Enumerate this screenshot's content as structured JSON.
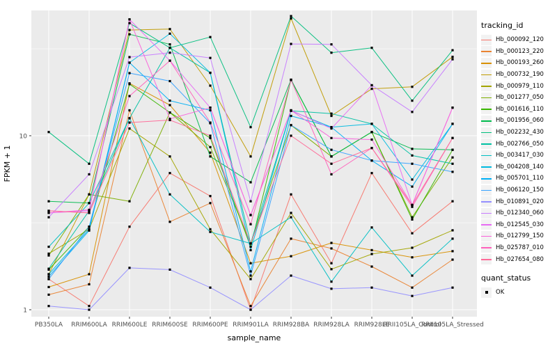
{
  "chart_data": {
    "type": "line",
    "title": "",
    "xlabel": "sample_name",
    "ylabel": "FPKM + 1",
    "yscale": "log10",
    "ylim": [
      0.95,
      52
    ],
    "grid": true,
    "panel_bg": "#EBEBEB",
    "grid_color": "#FFFFFF",
    "point_color": "#000000",
    "ytick_labels": [
      "10",
      "1"
    ],
    "ytick_values": [
      10,
      1
    ],
    "yminor_values": [
      31.6,
      3.16
    ],
    "legend_position": "right",
    "categories": [
      "PB350LA",
      "RRIM600LA",
      "RRIM600LE",
      "RRIM600SE",
      "RRIM600PE",
      "RRIM901LA",
      "RRIM928BA",
      "RRIM928LA",
      "RRIM928LE",
      "RRII105LA_Control",
      "RRII105LA_Stressed"
    ],
    "series": [
      {
        "name": "Hb_000092_120",
        "color": "#F8766D",
        "values": [
          1.5,
          1.05,
          3.0,
          6.1,
          4.5,
          1.0,
          4.6,
          1.85,
          6.1,
          2.75,
          4.2
        ]
      },
      {
        "name": "Hb_000123_220",
        "color": "#EA8331",
        "values": [
          1.22,
          1.4,
          14.0,
          3.2,
          4.1,
          1.05,
          2.56,
          2.25,
          1.77,
          1.34,
          1.94
        ]
      },
      {
        "name": "Hb_000193_260",
        "color": "#D89000",
        "values": [
          1.35,
          1.6,
          20.0,
          15.0,
          8.0,
          1.85,
          2.03,
          2.42,
          2.2,
          2.0,
          2.17
        ]
      },
      {
        "name": "Hb_000732_190",
        "color": "#C09B00",
        "values": [
          1.6,
          4.6,
          40.5,
          41.0,
          19.4,
          7.6,
          47.2,
          13.0,
          18.6,
          19.1,
          28.4
        ]
      },
      {
        "name": "Hb_000979_110",
        "color": "#A3A500",
        "values": [
          2.1,
          2.9,
          11.0,
          7.6,
          2.9,
          1.5,
          3.6,
          1.71,
          2.09,
          2.27,
          2.86
        ]
      },
      {
        "name": "Hb_001277_050",
        "color": "#7CAE00",
        "values": [
          2.05,
          4.6,
          4.2,
          13.6,
          8.6,
          2.4,
          11.5,
          7.6,
          10.5,
          3.4,
          7.5
        ]
      },
      {
        "name": "Hb_001616_110",
        "color": "#39B600",
        "values": [
          1.7,
          3.0,
          19.8,
          13.6,
          9.7,
          2.3,
          20.9,
          7.6,
          10.5,
          3.3,
          8.3
        ]
      },
      {
        "name": "Hb_001956_060",
        "color": "#00BB4E",
        "values": [
          4.2,
          4.1,
          38.3,
          33.5,
          7.6,
          5.4,
          21.0,
          7.6,
          10.5,
          8.4,
          8.3
        ]
      },
      {
        "name": "Hb_002232_430",
        "color": "#00BF7D",
        "values": [
          10.5,
          6.9,
          44.4,
          32.0,
          36.9,
          11.2,
          48.7,
          30.0,
          32.0,
          15.9,
          31.0
        ]
      },
      {
        "name": "Hb_002766_050",
        "color": "#00C1A3",
        "values": [
          1.72,
          3.7,
          12.6,
          32.0,
          23.0,
          2.4,
          13.9,
          13.4,
          11.7,
          7.7,
          6.9
        ]
      },
      {
        "name": "Hb_003417_030",
        "color": "#00BFC4",
        "values": [
          2.3,
          4.1,
          12.6,
          4.6,
          2.8,
          2.4,
          3.4,
          1.45,
          2.97,
          1.57,
          2.56
        ]
      },
      {
        "name": "Hb_004208_140",
        "color": "#00BAE0",
        "values": [
          1.6,
          2.9,
          26.3,
          38.6,
          23.0,
          2.2,
          13.9,
          11.2,
          11.7,
          5.6,
          11.7
        ]
      },
      {
        "name": "Hb_005701_110",
        "color": "#00B0F6",
        "values": [
          1.55,
          2.85,
          26.3,
          15.9,
          14.0,
          1.66,
          13.0,
          11.2,
          7.2,
          5.1,
          11.7
        ]
      },
      {
        "name": "Hb_006120_150",
        "color": "#35A2FF",
        "values": [
          1.5,
          3.0,
          22.9,
          20.6,
          11.8,
          1.57,
          11.5,
          8.3,
          7.2,
          6.9,
          6.2
        ]
      },
      {
        "name": "Hb_010891_020",
        "color": "#9590FF",
        "values": [
          1.05,
          1.0,
          1.74,
          1.7,
          1.34,
          1.0,
          1.57,
          1.32,
          1.34,
          1.2,
          1.34
        ]
      },
      {
        "name": "Hb_012340_060",
        "color": "#C77CFF",
        "values": [
          3.4,
          6.0,
          28.3,
          30.0,
          28.0,
          4.2,
          33.7,
          33.5,
          19.5,
          13.7,
          27.5
        ]
      },
      {
        "name": "Hb_012545_030",
        "color": "#E76BF3",
        "values": [
          3.6,
          3.7,
          46.6,
          27.0,
          14.5,
          3.5,
          14.0,
          11.0,
          19.5,
          4.0,
          14.5
        ]
      },
      {
        "name": "Hb_012799_150",
        "color": "#FA62DB",
        "values": [
          3.6,
          3.75,
          46.6,
          12.5,
          14.5,
          3.5,
          14.0,
          9.7,
          9.5,
          4.0,
          14.5
        ]
      },
      {
        "name": "Hb_025787_010",
        "color": "#FF62BC",
        "values": [
          3.7,
          3.6,
          16.9,
          27.0,
          11.9,
          3.1,
          20.9,
          6.0,
          8.5,
          3.9,
          9.7
        ]
      },
      {
        "name": "Hb_027654_080",
        "color": "#FF6A98",
        "values": [
          3.7,
          3.6,
          11.9,
          12.3,
          10.0,
          2.4,
          10.0,
          6.9,
          8.5,
          4.0,
          9.7
        ]
      }
    ],
    "legend": {
      "tracking_title": "tracking_id",
      "quant_title": "quant_status",
      "quant_items": [
        {
          "label": "OK",
          "marker": "black-square"
        }
      ]
    }
  }
}
